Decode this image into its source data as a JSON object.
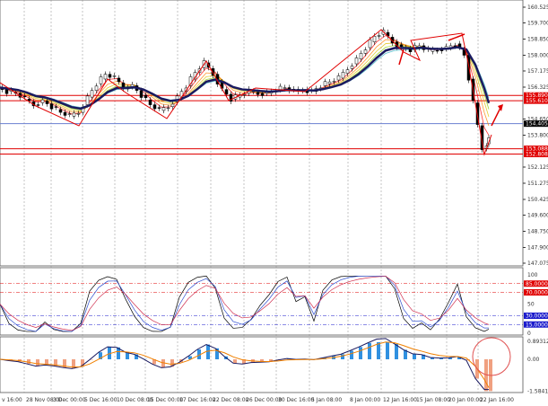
{
  "chart_data": {
    "type": "candlestick",
    "main": {
      "y_ticks": [
        "160.525",
        "159.700",
        "158.850",
        "158.000",
        "157.175",
        "156.325",
        "154.650",
        "153.800",
        "152.125",
        "151.275",
        "150.425",
        "149.600",
        "148.750",
        "147.900",
        "147.075"
      ],
      "ylim": [
        147.075,
        160.525
      ],
      "close": [
        156.3,
        156.1,
        156.0,
        155.7,
        155.4,
        155.6,
        155.3,
        155.0,
        154.8,
        155.0,
        155.8,
        156.5,
        157.0,
        156.8,
        156.3,
        156.4,
        155.9,
        155.4,
        155.1,
        155.3,
        155.8,
        156.4,
        157.1,
        157.6,
        157.0,
        156.2,
        155.7,
        155.9,
        156.1,
        156.0,
        156.0,
        156.2,
        156.3,
        156.1,
        156.2,
        156.1,
        156.4,
        156.6,
        156.8,
        157.3,
        157.8,
        158.4,
        159.0,
        159.2,
        158.7,
        158.4,
        158.3,
        158.5,
        158.2,
        158.3,
        158.4,
        158.6,
        158.0,
        155.5,
        153.1,
        153.6
      ],
      "levels": [
        {
          "price": 155.89,
          "label": "155.890",
          "color": "#e00000"
        },
        {
          "price": 155.61,
          "label": "155.610",
          "color": "#e00000"
        },
        {
          "price": 153.088,
          "label": "153.088",
          "color": "#e00000"
        },
        {
          "price": 152.808,
          "label": "152.808",
          "color": "#e00000"
        },
        {
          "price": 154.405,
          "label": "154.405",
          "color": "#6a7fd0"
        }
      ]
    },
    "oscillator": {
      "y_ticks": [
        "100",
        "50",
        "0"
      ],
      "levels": [
        {
          "value": 85,
          "label": "85.0000",
          "color": "#e00000"
        },
        {
          "value": 70,
          "label": "70.0000",
          "color": "#e00000"
        },
        {
          "value": 30,
          "label": "30.0000",
          "color": "#1a1acc"
        },
        {
          "value": 15,
          "label": "15.0000",
          "color": "#1a1acc"
        }
      ]
    },
    "macd": {
      "y_ticks": [
        "0.89312",
        "0.00",
        "-1.5841"
      ],
      "ylim": [
        -1.5841,
        0.89312
      ]
    },
    "x_labels": [
      "v 16:00",
      "28 Nov 08:00",
      "3 Dec 00:00",
      "5 Dec 16:00",
      "10 Dec 08:00",
      "15 Dec 00:00",
      "17 Dec 16:00",
      "22 Dec 08:00",
      "26 Dec 00:00",
      "30 Dec 16:00",
      "5 Jan 08:00",
      "8 Jan 00:00",
      "12 Jan 16:00",
      "15 Jan 08:00",
      "20 Jan 00:00",
      "22 Jan 16:00"
    ]
  }
}
